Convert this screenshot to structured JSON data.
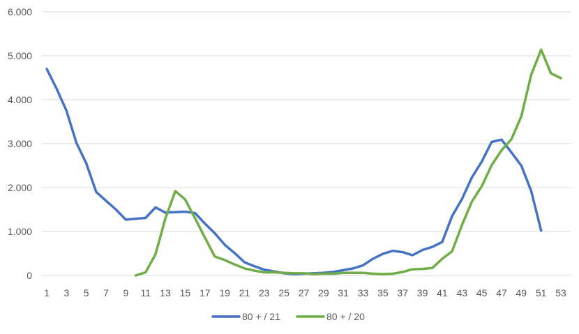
{
  "chart_data": {
    "type": "line",
    "title": "",
    "xlabel": "",
    "ylabel": "",
    "x": [
      1,
      2,
      3,
      4,
      5,
      6,
      7,
      8,
      9,
      10,
      11,
      12,
      13,
      14,
      15,
      16,
      17,
      18,
      19,
      20,
      21,
      22,
      23,
      24,
      25,
      26,
      27,
      28,
      29,
      30,
      31,
      32,
      33,
      34,
      35,
      36,
      37,
      38,
      39,
      40,
      41,
      42,
      43,
      44,
      45,
      46,
      47,
      48,
      49,
      50,
      51,
      52,
      53
    ],
    "x_tick_labels": [
      "1",
      "3",
      "5",
      "7",
      "9",
      "11",
      "13",
      "15",
      "17",
      "19",
      "21",
      "23",
      "25",
      "27",
      "29",
      "31",
      "33",
      "35",
      "37",
      "39",
      "41",
      "43",
      "45",
      "47",
      "49",
      "51",
      "53"
    ],
    "y_tick_labels": [
      "0",
      "1.000",
      "2.000",
      "3.000",
      "4.000",
      "5.000",
      "6.000"
    ],
    "ylim": [
      0,
      6000
    ],
    "grid": true,
    "legend_position": "bottom",
    "series": [
      {
        "name": "80 + / 21",
        "color": "#4472c4",
        "values": [
          4700,
          4250,
          3750,
          3020,
          2550,
          1900,
          1700,
          1500,
          1270,
          1290,
          1310,
          1550,
          1430,
          1440,
          1450,
          1420,
          1180,
          960,
          700,
          510,
          300,
          210,
          130,
          90,
          50,
          30,
          40,
          50,
          60,
          80,
          120,
          160,
          230,
          380,
          490,
          560,
          530,
          460,
          580,
          650,
          760,
          1350,
          1740,
          2230,
          2590,
          3040,
          3090,
          2800,
          2500,
          1920,
          1020,
          null,
          null
        ]
      },
      {
        "name": "80 + / 20",
        "color": "#70ad47",
        "values": [
          null,
          null,
          null,
          null,
          null,
          null,
          null,
          null,
          null,
          0,
          70,
          480,
          1300,
          1920,
          1730,
          1300,
          860,
          430,
          350,
          250,
          160,
          110,
          70,
          70,
          60,
          50,
          50,
          30,
          40,
          40,
          60,
          60,
          60,
          40,
          30,
          40,
          80,
          140,
          150,
          170,
          380,
          550,
          1150,
          1680,
          2030,
          2510,
          2850,
          3100,
          3620,
          4570,
          5140,
          4600,
          4490
        ]
      }
    ]
  }
}
